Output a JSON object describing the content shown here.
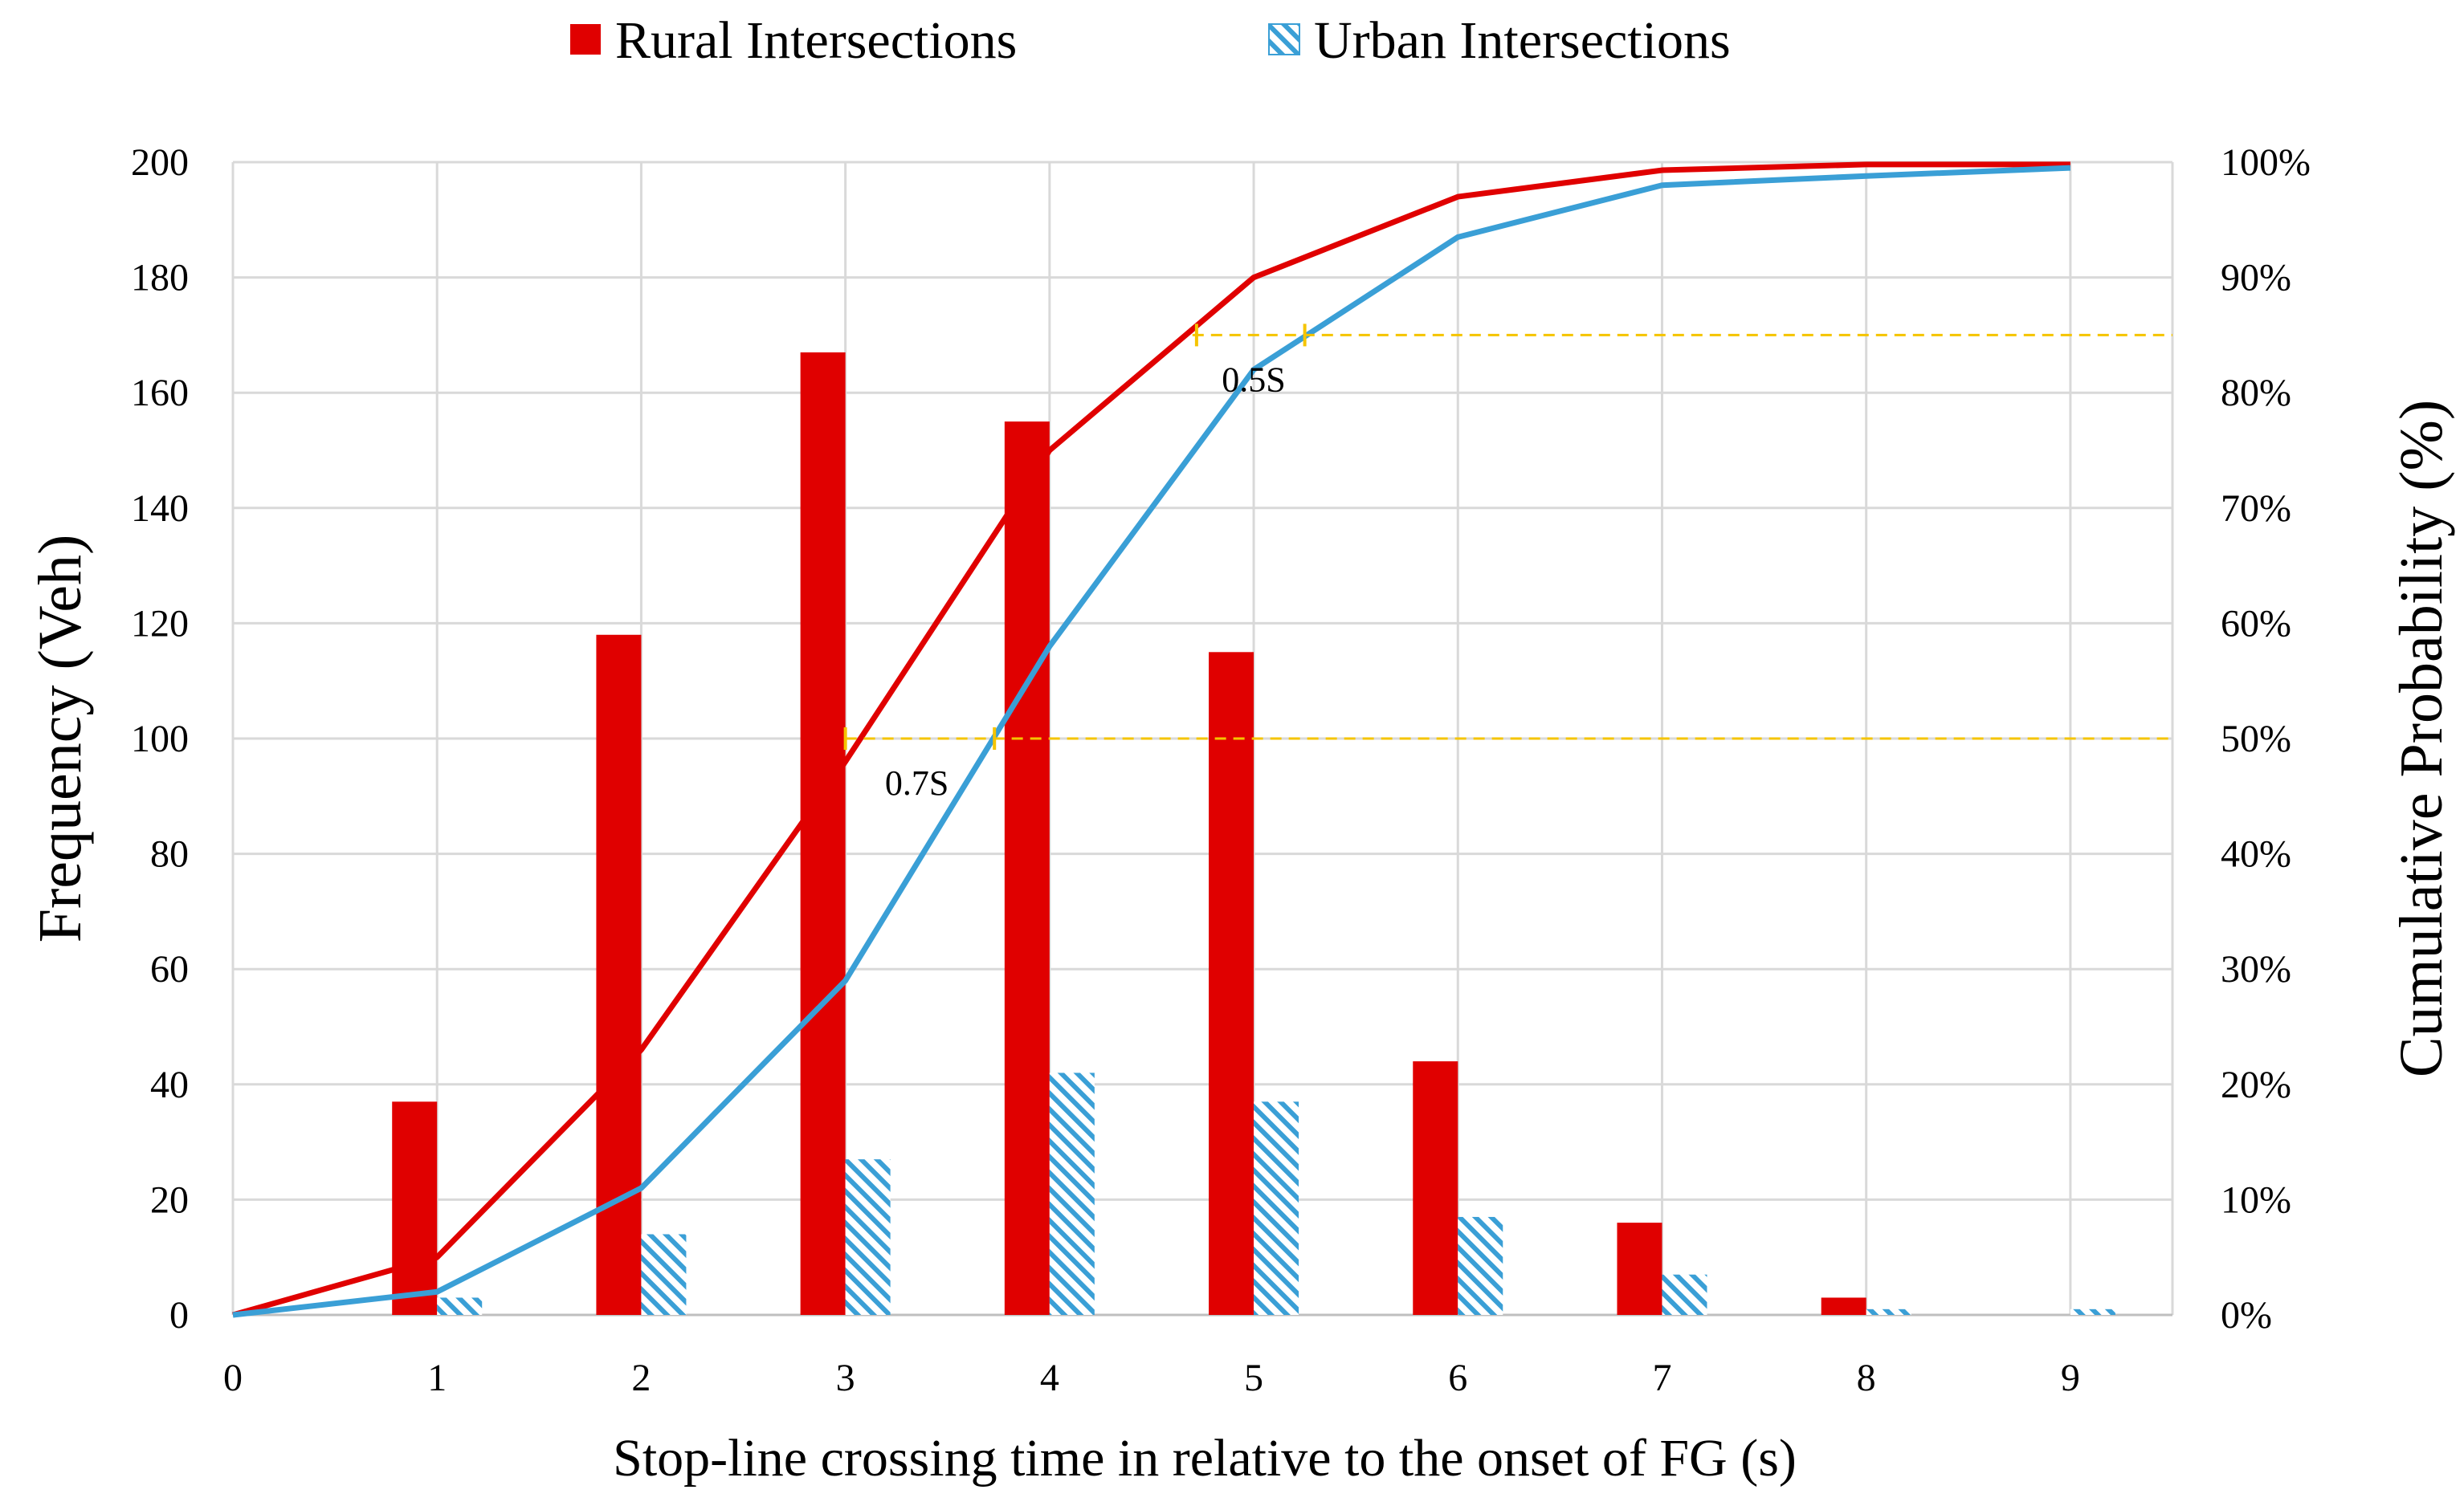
{
  "chart_data": {
    "type": "bar",
    "title": "",
    "xlabel": "Stop-line crossing time in relative to the onset of FG (s)",
    "ylabel": "Frequency (Veh)",
    "y2label": "Cumulative Probability (%)",
    "categories": [
      "1",
      "2",
      "3",
      "4",
      "5",
      "6",
      "7",
      "8",
      "9"
    ],
    "x_ticks": [
      "0",
      "1",
      "2",
      "3",
      "4",
      "5",
      "6",
      "7",
      "8",
      "9"
    ],
    "ylim": [
      0,
      200
    ],
    "y_ticks": [
      "0",
      "20",
      "40",
      "60",
      "80",
      "100",
      "120",
      "140",
      "160",
      "180",
      "200"
    ],
    "y2lim": [
      0,
      100
    ],
    "y2_ticks": [
      "0%",
      "10%",
      "20%",
      "30%",
      "40%",
      "50%",
      "60%",
      "70%",
      "80%",
      "90%",
      "100%"
    ],
    "grid": true,
    "legend_position": "top",
    "series": [
      {
        "name": "Rural Intersections",
        "kind": "bar",
        "color": "#e00000",
        "pattern": "solid",
        "values": [
          37,
          118,
          167,
          155,
          115,
          44,
          16,
          3,
          0
        ]
      },
      {
        "name": "Urban Intersections",
        "kind": "bar",
        "color": "#3a9fd6",
        "pattern": "hatched",
        "values": [
          3,
          14,
          27,
          42,
          37,
          17,
          7,
          1,
          1
        ]
      }
    ],
    "cumulative": [
      {
        "name": "Rural Intersections cumulative",
        "color": "#e00000",
        "x": [
          0,
          1,
          2,
          3,
          4,
          5,
          6,
          7,
          8,
          9
        ],
        "values": [
          0,
          5,
          23,
          48,
          75,
          90,
          97,
          99.3,
          99.8,
          99.8
        ]
      },
      {
        "name": "Urban Intersections cumulative",
        "color": "#3a9fd6",
        "x": [
          0,
          1,
          2,
          3,
          4,
          5,
          6,
          7,
          8,
          9
        ],
        "values": [
          0,
          2,
          11,
          29,
          58,
          82,
          93.5,
          98,
          98.8,
          99.5
        ]
      }
    ],
    "reference_lines": [
      {
        "y2": 85,
        "x_from": 4.7,
        "color": "#f5c400",
        "style": "dashed"
      },
      {
        "y2": 50,
        "x_from": 3.0,
        "color": "#f5c400",
        "style": "dashed"
      }
    ],
    "annotations": [
      {
        "text": "0.5S",
        "x": 5.0,
        "y2": 85
      },
      {
        "text": "0.7S",
        "x": 3.35,
        "y2": 50
      }
    ],
    "gap_markers": [
      {
        "x1": 4.72,
        "x2": 5.25,
        "y2": 85
      },
      {
        "x1": 3.0,
        "x2": 3.73,
        "y2": 50
      }
    ]
  }
}
